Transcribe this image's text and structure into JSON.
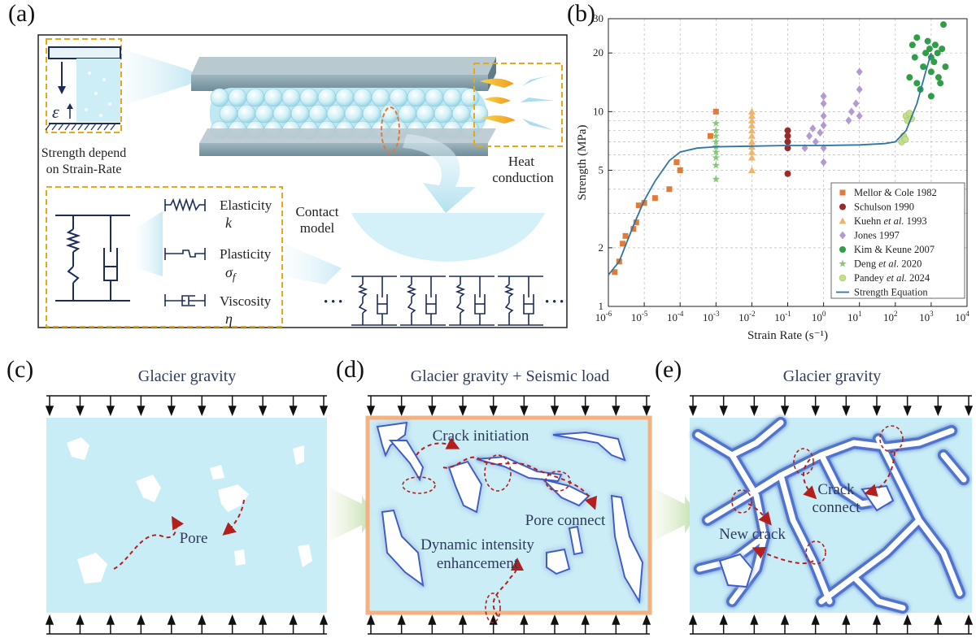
{
  "panels": {
    "a": {
      "label": "(a)",
      "strength_text_1": "Strength depend",
      "strength_text_2": "on  Strain-Rate",
      "strain_symbol": "ε",
      "heat_conduction": "Heat conduction",
      "contact_model_1": "Contact",
      "contact_model_2": "model",
      "elements": [
        {
          "name": "Elasticity",
          "symbol": "k"
        },
        {
          "name": "Plasticity",
          "symbol": "σf"
        },
        {
          "name": "Viscosity",
          "symbol": "η"
        }
      ],
      "ellipsis": "• • •"
    },
    "b": {
      "label": "(b)"
    },
    "c": {
      "label": "(c)",
      "title": "Glacier gravity",
      "pore_label": "Pore"
    },
    "d": {
      "label": "(d)",
      "title": "Glacier gravity + Seismic load",
      "crack_initiation": "Crack initiation",
      "pore_connect": "Pore connect",
      "dynamic_1": "Dynamic intensity",
      "dynamic_2": "enhancement"
    },
    "e": {
      "label": "(e)",
      "title": "Glacier gravity",
      "crack_connect_1": "Crack",
      "crack_connect_2": "connect",
      "new_crack": "New crack"
    }
  },
  "chart_data": {
    "type": "scatter",
    "xlabel": "Strain Rate (s⁻¹)",
    "ylabel": "Strength (MPa)",
    "x_scale": "log",
    "y_scale": "log",
    "xlim": [
      1e-06,
      10000.0
    ],
    "ylim": [
      1,
      30
    ],
    "x_ticks": [
      {
        "v": 1e-06,
        "base": "10",
        "exp": "-6"
      },
      {
        "v": 1e-05,
        "base": "10",
        "exp": "-5"
      },
      {
        "v": 0.0001,
        "base": "10",
        "exp": "-4"
      },
      {
        "v": 0.001,
        "base": "10",
        "exp": "-3"
      },
      {
        "v": 0.01,
        "base": "10",
        "exp": "-2"
      },
      {
        "v": 0.1,
        "base": "10",
        "exp": "-1"
      },
      {
        "v": 1,
        "base": "10",
        "exp": "0"
      },
      {
        "v": 10,
        "base": "10",
        "exp": "1"
      },
      {
        "v": 100,
        "base": "10",
        "exp": "2"
      },
      {
        "v": 1000,
        "base": "10",
        "exp": "3"
      },
      {
        "v": 10000,
        "base": "10",
        "exp": "4"
      }
    ],
    "y_ticks": [
      1,
      2,
      5,
      10,
      20,
      30
    ],
    "grid": true,
    "legend_position": "bottom-right",
    "series": [
      {
        "name": "Mellor & Cole 1982",
        "marker": "square",
        "color": "#e07b39",
        "points": [
          [
            1.5e-06,
            1.5
          ],
          [
            2e-06,
            1.7
          ],
          [
            2.5e-06,
            2.1
          ],
          [
            3e-06,
            2.3
          ],
          [
            5e-06,
            2.5
          ],
          [
            6e-06,
            2.7
          ],
          [
            7e-06,
            3.3
          ],
          [
            1e-05,
            3.4
          ],
          [
            2e-05,
            3.6
          ],
          [
            5e-05,
            4.0
          ],
          [
            8e-05,
            5.5
          ],
          [
            0.0001,
            5.0
          ],
          [
            0.0007,
            7.5
          ],
          [
            0.001,
            10
          ]
        ]
      },
      {
        "name": "Schulson 1990",
        "marker": "circle",
        "color": "#9b2a2a",
        "points": [
          [
            0.1,
            4.8
          ],
          [
            0.1,
            6.5
          ],
          [
            0.1,
            7.0
          ],
          [
            0.1,
            7.5
          ],
          [
            0.1,
            8.0
          ]
        ]
      },
      {
        "name": "Kuehn et al. 1993",
        "marker": "triangle",
        "color": "#f2b36b",
        "points": [
          [
            0.01,
            5.0
          ],
          [
            0.01,
            5.8
          ],
          [
            0.01,
            6.2
          ],
          [
            0.01,
            6.6
          ],
          [
            0.01,
            7.0
          ],
          [
            0.01,
            7.5
          ],
          [
            0.01,
            8.0
          ],
          [
            0.01,
            8.5
          ],
          [
            0.01,
            9.0
          ],
          [
            0.01,
            9.5
          ],
          [
            0.01,
            10.0
          ]
        ]
      },
      {
        "name": "Jones 1997",
        "marker": "diamond",
        "color": "#b39ad1",
        "points": [
          [
            0.3,
            6.5
          ],
          [
            0.4,
            7.5
          ],
          [
            0.5,
            8.2
          ],
          [
            0.6,
            7.0
          ],
          [
            0.8,
            7.8
          ],
          [
            1,
            5.5
          ],
          [
            1,
            6.5
          ],
          [
            1,
            8.5
          ],
          [
            1,
            9.5
          ],
          [
            1,
            11
          ],
          [
            1,
            12
          ],
          [
            5,
            9
          ],
          [
            6,
            10
          ],
          [
            8,
            11
          ],
          [
            10,
            9.5
          ],
          [
            10,
            13
          ],
          [
            10,
            16
          ]
        ]
      },
      {
        "name": "Kim & Keune 2007",
        "marker": "circle",
        "color": "#2e9e47",
        "points": [
          [
            250,
            15
          ],
          [
            300,
            22
          ],
          [
            350,
            19
          ],
          [
            400,
            14
          ],
          [
            400,
            24
          ],
          [
            500,
            13
          ],
          [
            600,
            17
          ],
          [
            700,
            20
          ],
          [
            800,
            23
          ],
          [
            900,
            21
          ],
          [
            1000,
            12
          ],
          [
            1000,
            16
          ],
          [
            1000,
            19
          ],
          [
            1200,
            18
          ],
          [
            1300,
            22
          ],
          [
            1500,
            20
          ],
          [
            1600,
            15
          ],
          [
            1800,
            14
          ],
          [
            2000,
            21
          ],
          [
            2200,
            28
          ],
          [
            2500,
            17
          ]
        ]
      },
      {
        "name": "Deng et al. 2020",
        "marker": "star",
        "color": "#86c57a",
        "points": [
          [
            0.001,
            4.5
          ],
          [
            0.001,
            5.3
          ],
          [
            0.001,
            5.8
          ],
          [
            0.001,
            6.2
          ],
          [
            0.001,
            6.6
          ],
          [
            0.001,
            7.0
          ],
          [
            0.001,
            7.5
          ],
          [
            0.001,
            8.0
          ],
          [
            0.001,
            8.7
          ]
        ]
      },
      {
        "name": "Pandey et al. 2024",
        "marker": "circle-light",
        "color": "#c3df8c",
        "points": [
          [
            150,
            7.0
          ],
          [
            170,
            7.5
          ],
          [
            190,
            7.2
          ],
          [
            200,
            9.5
          ],
          [
            220,
            9.0
          ],
          [
            250,
            9.8
          ],
          [
            280,
            9.2
          ]
        ]
      },
      {
        "name": "Strength Equation",
        "marker": "line",
        "color": "#2f74a6",
        "points": [
          [
            1e-06,
            1.45
          ],
          [
            2e-06,
            1.7
          ],
          [
            5e-06,
            2.6
          ],
          [
            1e-05,
            3.5
          ],
          [
            2e-05,
            4.4
          ],
          [
            5e-05,
            5.6
          ],
          [
            0.0001,
            6.2
          ],
          [
            0.0003,
            6.5
          ],
          [
            0.001,
            6.6
          ],
          [
            0.01,
            6.65
          ],
          [
            0.1,
            6.7
          ],
          [
            1,
            6.7
          ],
          [
            10,
            6.75
          ],
          [
            50,
            6.85
          ],
          [
            100,
            7.0
          ],
          [
            200,
            8.0
          ],
          [
            400,
            11
          ],
          [
            700,
            16
          ],
          [
            1000,
            20
          ]
        ]
      }
    ]
  }
}
